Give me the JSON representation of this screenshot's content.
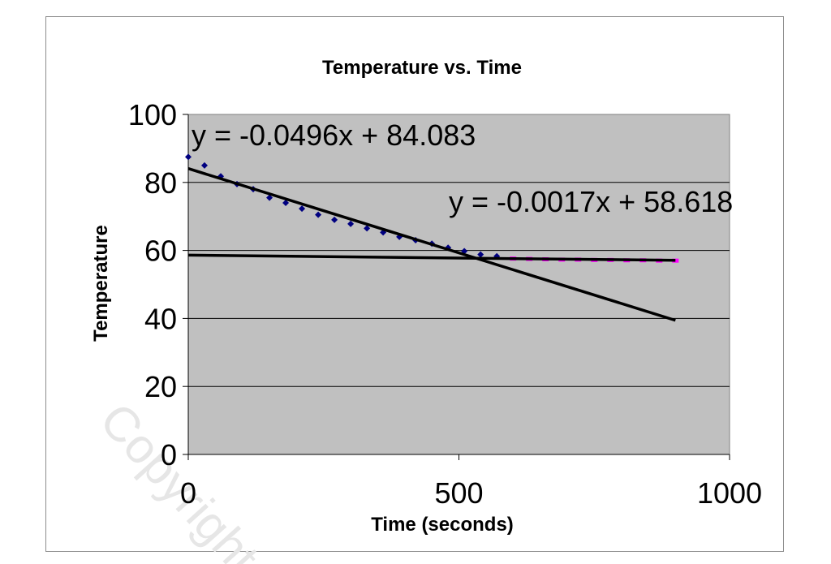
{
  "watermark": "Copyright",
  "chart_data": {
    "type": "scatter",
    "title": "Temperature vs. Time",
    "xlabel": "Time (seconds)",
    "ylabel": "Temperature",
    "xlim": [
      0,
      1000
    ],
    "ylim": [
      0,
      100
    ],
    "x_ticks": [
      "0",
      "500",
      "1000"
    ],
    "y_ticks": [
      "0",
      "20",
      "40",
      "60",
      "80",
      "100"
    ],
    "grid": "horizontal",
    "plot_background": "#c0c0c0",
    "series": [
      {
        "color": "#000080",
        "marker": "diamond",
        "x": [
          0,
          30,
          60,
          90,
          120,
          150,
          180,
          210,
          240,
          270,
          300,
          330,
          360,
          390,
          420,
          450,
          480,
          510,
          540,
          570
        ],
        "y": [
          87.5,
          85.0,
          81.8,
          79.5,
          78.0,
          75.5,
          74.0,
          72.3,
          70.5,
          69.0,
          67.8,
          66.5,
          65.3,
          64.0,
          63.0,
          62.0,
          60.8,
          59.8,
          58.8,
          58.3
        ]
      },
      {
        "color": "#ff00ff",
        "marker": "square",
        "x": [
          600,
          630,
          660,
          690,
          720,
          750,
          780,
          810,
          840,
          870,
          900
        ],
        "y": [
          57.6,
          57.5,
          57.4,
          57.3,
          57.3,
          57.2,
          57.2,
          57.1,
          57.1,
          57.0,
          57.0
        ]
      }
    ],
    "trendlines": [
      {
        "equation": "y = -0.0496x + 84.083",
        "slope": -0.0496,
        "intercept": 84.083,
        "x_range": [
          0,
          900
        ]
      },
      {
        "equation": "y = -0.0017x + 58.618",
        "slope": -0.0017,
        "intercept": 58.618,
        "x_range": [
          0,
          900
        ]
      }
    ]
  }
}
